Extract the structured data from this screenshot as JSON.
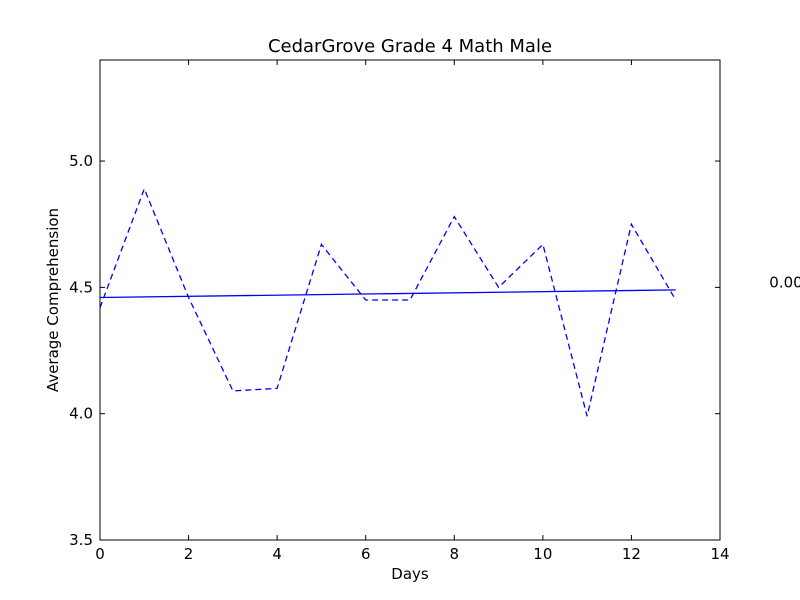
{
  "chart_data": {
    "type": "line",
    "title": "CedarGrove Grade 4 Math Male",
    "xlabel": "Days",
    "ylabel": "Average Comprehension",
    "xlim": [
      0,
      14
    ],
    "ylim": [
      3.5,
      5.4
    ],
    "x_ticks": [
      0,
      2,
      4,
      6,
      8,
      10,
      12,
      14
    ],
    "y_ticks": [
      3.5,
      4.0,
      4.5,
      5.0
    ],
    "x_tick_labels": [
      "0",
      "2",
      "4",
      "6",
      "8",
      "10",
      "12",
      "14"
    ],
    "y_tick_labels": [
      "3.5",
      "4.0",
      "4.5",
      "5.0"
    ],
    "grid": false,
    "series": [
      {
        "style": "dashed",
        "color": "#0000ff",
        "x": [
          0,
          1,
          2,
          3,
          4,
          5,
          6,
          7,
          8,
          9,
          10,
          11,
          12,
          13
        ],
        "y": [
          4.42,
          4.89,
          4.46,
          4.09,
          4.1,
          4.67,
          4.45,
          4.45,
          4.78,
          4.5,
          4.67,
          3.99,
          4.75,
          4.45
        ]
      },
      {
        "style": "solid",
        "color": "#0000ff",
        "x": [
          0,
          13
        ],
        "y": [
          4.46,
          4.49
        ]
      }
    ],
    "annotations": [
      {
        "text": "0.00",
        "x": 15.0,
        "y": 4.5
      }
    ]
  }
}
